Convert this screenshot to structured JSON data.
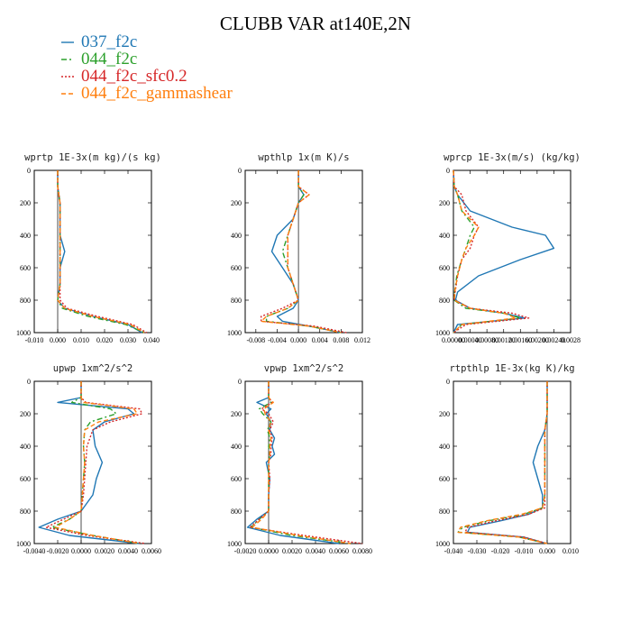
{
  "title": "CLUBB VAR at140E,2N",
  "legend": [
    {
      "label": "037_f2c",
      "color": "#1f77b4",
      "dash": "none"
    },
    {
      "label": "044_f2c",
      "color": "#2ca02c",
      "dash": "6,3,2,3"
    },
    {
      "label": "044_f2c_sfc0.2",
      "color": "#d62728",
      "dash": "2,2"
    },
    {
      "label": "044_f2c_gammashear",
      "color": "#ff7f0e",
      "dash": "5,3"
    }
  ],
  "chart_data": [
    {
      "type": "line",
      "title": "wprtp  1E-3x(m kg)/(s kg)",
      "xlim": [
        -0.01,
        0.04
      ],
      "xticks": [
        "-0.010",
        "0.000",
        "0.010",
        "0.020",
        "0.030",
        "0.040"
      ],
      "ylim": [
        1000,
        0
      ],
      "yticks": [
        "0",
        "200",
        "400",
        "600",
        "800",
        "1000"
      ],
      "y": [
        0,
        100,
        200,
        300,
        400,
        450,
        500,
        550,
        600,
        700,
        800,
        850,
        900,
        950,
        1000
      ],
      "series": [
        {
          "name": "037_f2c",
          "values": [
            0.0,
            0.0,
            0.001,
            0.001,
            0.001,
            0.002,
            0.003,
            0.002,
            0.001,
            0.001,
            0.0,
            0.003,
            0.015,
            0.03,
            0.036
          ]
        },
        {
          "name": "044_f2c",
          "values": [
            0.0,
            0.0,
            0.001,
            0.001,
            0.001,
            0.001,
            0.001,
            0.001,
            0.001,
            0.001,
            0.0,
            0.002,
            0.013,
            0.029,
            0.037
          ]
        },
        {
          "name": "044_f2c_sfc0.2",
          "values": [
            0.0,
            0.0,
            0.001,
            0.001,
            0.001,
            0.001,
            0.001,
            0.001,
            0.001,
            0.001,
            0.001,
            0.004,
            0.017,
            0.032,
            0.038
          ]
        },
        {
          "name": "044_f2c_gammashear",
          "values": [
            0.0,
            0.0,
            0.001,
            0.001,
            0.001,
            0.001,
            0.001,
            0.001,
            0.001,
            0.001,
            0.0,
            0.003,
            0.015,
            0.031,
            0.037
          ]
        }
      ]
    },
    {
      "type": "line",
      "title": "wpthlp  1x(m K)/s",
      "xlim": [
        -0.01,
        0.012
      ],
      "xticks": [
        "-0.008",
        "-0.004",
        "0.000",
        "0.004",
        "0.008",
        "0.012"
      ],
      "ylim": [
        1000,
        0
      ],
      "yticks": [
        "0",
        "200",
        "400",
        "600",
        "800",
        "1000"
      ],
      "y": [
        0,
        100,
        150,
        200,
        300,
        400,
        500,
        600,
        700,
        800,
        850,
        900,
        930,
        960,
        1000
      ],
      "series": [
        {
          "name": "037_f2c",
          "values": [
            0.0,
            0.0,
            0.001,
            0.0,
            -0.001,
            -0.004,
            -0.005,
            -0.003,
            -0.001,
            0.0,
            -0.001,
            -0.004,
            -0.003,
            0.002,
            0.008
          ]
        },
        {
          "name": "044_f2c",
          "values": [
            0.0,
            0.0,
            0.001,
            0.0,
            -0.001,
            -0.002,
            -0.003,
            -0.002,
            -0.001,
            0.0,
            -0.002,
            -0.006,
            -0.006,
            0.002,
            0.008
          ]
        },
        {
          "name": "044_f2c_sfc0.2",
          "values": [
            0.0,
            0.0,
            0.002,
            0.0,
            -0.001,
            -0.002,
            -0.002,
            -0.002,
            -0.001,
            0.0,
            -0.003,
            -0.007,
            -0.007,
            0.003,
            0.009
          ]
        },
        {
          "name": "044_f2c_gammashear",
          "values": [
            0.0,
            0.0,
            0.002,
            0.0,
            -0.001,
            -0.002,
            -0.002,
            -0.002,
            -0.001,
            0.0,
            -0.002,
            -0.006,
            -0.007,
            0.002,
            0.008
          ]
        }
      ]
    },
    {
      "type": "line",
      "title": "wprcp  1E-3x(m/s) (kg/kg)",
      "xlim": [
        0.0,
        0.0028
      ],
      "xticks": [
        "0.00000",
        "0.00040",
        "0.00080",
        "0.00120",
        "0.00160",
        "0.00200",
        "0.00240",
        "0.0028"
      ],
      "ylim": [
        1000,
        0
      ],
      "yticks": [
        "0",
        "200",
        "400",
        "600",
        "800",
        "1000"
      ],
      "y": [
        0,
        100,
        150,
        250,
        350,
        400,
        480,
        550,
        650,
        750,
        800,
        850,
        880,
        910,
        950,
        1000
      ],
      "series": [
        {
          "name": "037_f2c",
          "values": [
            0.0,
            2e-05,
            0.0001,
            0.0004,
            0.0014,
            0.0022,
            0.0024,
            0.0016,
            0.0006,
            0.0001,
            5e-05,
            0.0004,
            0.0012,
            0.0017,
            0.0001,
            0.0
          ]
        },
        {
          "name": "044_f2c",
          "values": [
            0.0,
            2e-05,
            0.0001,
            0.0002,
            0.0005,
            0.0004,
            0.0003,
            0.0002,
            8e-05,
            3e-05,
            2e-05,
            0.0003,
            0.0012,
            0.0016,
            0.0002,
            0.0
          ]
        },
        {
          "name": "044_f2c_sfc0.2",
          "values": [
            0.0,
            2e-05,
            0.0002,
            0.0003,
            0.0006,
            0.0005,
            0.0004,
            0.0002,
            0.0001,
            4e-05,
            2e-05,
            0.0004,
            0.0014,
            0.0018,
            0.0003,
            0.0
          ]
        },
        {
          "name": "044_f2c_gammashear",
          "values": [
            0.0,
            2e-05,
            0.0001,
            0.0002,
            0.0006,
            0.0005,
            0.0003,
            0.0002,
            0.0001,
            3e-05,
            2e-05,
            0.0004,
            0.0012,
            0.0015,
            0.0002,
            0.0
          ]
        }
      ]
    },
    {
      "type": "line",
      "title": "upwp  1xm^2/s^2",
      "xlim": [
        -0.004,
        0.006
      ],
      "xticks": [
        "-0.0040",
        "-0.0020",
        "0.0000",
        "0.0020",
        "0.0040",
        "0.0060"
      ],
      "ylim": [
        1000,
        0
      ],
      "yticks": [
        "0",
        "200",
        "400",
        "600",
        "800",
        "1000"
      ],
      "y": [
        0,
        100,
        130,
        170,
        200,
        250,
        300,
        400,
        500,
        600,
        700,
        800,
        850,
        900,
        950,
        1000
      ],
      "series": [
        {
          "name": "037_f2c",
          "values": [
            0.0,
            0.0,
            -0.002,
            0.004,
            0.0045,
            0.002,
            0.001,
            0.0012,
            0.0018,
            0.0013,
            0.001,
            0.0,
            -0.002,
            -0.0036,
            -0.001,
            0.005
          ]
        },
        {
          "name": "044_f2c",
          "values": [
            0.0,
            0.0,
            -0.0008,
            0.0025,
            0.003,
            0.0008,
            0.0003,
            0.0002,
            0.0003,
            0.0002,
            0.0001,
            0.0,
            -0.001,
            -0.0025,
            0.001,
            0.005
          ]
        },
        {
          "name": "044_f2c_sfc0.2",
          "values": [
            0.0,
            0.0,
            0.0004,
            0.005,
            0.0052,
            0.0025,
            0.001,
            0.0005,
            0.0004,
            0.0003,
            0.0002,
            0.0,
            -0.0015,
            -0.003,
            0.0005,
            0.0055
          ]
        },
        {
          "name": "044_f2c_gammashear",
          "values": [
            0.0,
            0.0,
            0.0002,
            0.0045,
            0.0048,
            0.0015,
            0.0003,
            0.0002,
            0.0003,
            0.0002,
            0.0001,
            0.0,
            -0.001,
            -0.0022,
            0.001,
            0.005
          ]
        }
      ]
    },
    {
      "type": "line",
      "title": "vpwp  1xm^2/s^2",
      "xlim": [
        -0.002,
        0.008
      ],
      "xticks": [
        "-0.0020",
        "0.0000",
        "0.0020",
        "0.0040",
        "0.0060",
        "0.0080"
      ],
      "ylim": [
        1000,
        0
      ],
      "yticks": [
        "0",
        "200",
        "400",
        "600",
        "800",
        "1000"
      ],
      "y": [
        0,
        100,
        130,
        170,
        200,
        250,
        300,
        350,
        400,
        450,
        500,
        600,
        700,
        800,
        850,
        900,
        950,
        1000
      ],
      "series": [
        {
          "name": "037_f2c",
          "values": [
            0.0,
            0.0,
            -0.001,
            0.0002,
            -0.0002,
            0.0002,
            0.0001,
            0.0005,
            0.0003,
            0.0005,
            -0.0002,
            0.0001,
            0.0,
            0.0,
            -0.001,
            -0.0018,
            0.001,
            0.006
          ]
        },
        {
          "name": "044_f2c",
          "values": [
            0.0,
            0.0,
            0.0002,
            -0.0008,
            -0.0005,
            0.0002,
            -0.0001,
            0.0001,
            0.0,
            0.0001,
            0.0,
            0.0,
            0.0,
            0.0,
            -0.0008,
            -0.0015,
            0.002,
            0.007
          ]
        },
        {
          "name": "044_f2c_sfc0.2",
          "values": [
            0.0,
            0.0,
            0.0003,
            -0.0006,
            0.0,
            0.0004,
            0.0001,
            0.0003,
            0.0002,
            0.0002,
            0.0,
            0.0001,
            0.0,
            0.0,
            -0.0008,
            -0.0016,
            0.003,
            0.008
          ]
        },
        {
          "name": "044_f2c_gammashear",
          "values": [
            0.0,
            0.0,
            0.0004,
            -0.0004,
            -0.0003,
            0.0002,
            0.0,
            0.0002,
            0.0001,
            0.0001,
            0.0,
            0.0,
            0.0,
            0.0,
            -0.0006,
            -0.0014,
            0.0025,
            0.007
          ]
        }
      ]
    },
    {
      "type": "line",
      "title": "rtpthlp  1E-3x(kg K)/kg",
      "xlim": [
        -0.04,
        0.01
      ],
      "xticks": [
        "-0.040",
        "-0.030",
        "-0.020",
        "-0.010",
        "0.000",
        "0.010"
      ],
      "ylim": [
        1000,
        0
      ],
      "yticks": [
        "0",
        "200",
        "400",
        "600",
        "800",
        "1000"
      ],
      "y": [
        0,
        100,
        200,
        300,
        400,
        500,
        600,
        700,
        780,
        820,
        860,
        900,
        930,
        960,
        1000
      ],
      "series": [
        {
          "name": "037_f2c",
          "values": [
            0.0,
            0.0,
            0.0,
            -0.001,
            -0.004,
            -0.006,
            -0.004,
            -0.002,
            -0.002,
            -0.008,
            -0.02,
            -0.033,
            -0.034,
            -0.01,
            0.0
          ]
        },
        {
          "name": "044_f2c",
          "values": [
            0.0,
            0.0,
            0.0,
            -0.001,
            -0.001,
            -0.001,
            -0.001,
            -0.001,
            -0.002,
            -0.01,
            -0.025,
            -0.036,
            -0.038,
            -0.012,
            0.0
          ]
        },
        {
          "name": "044_f2c_sfc0.2",
          "values": [
            0.0,
            0.0,
            0.0,
            -0.001,
            -0.001,
            -0.001,
            -0.001,
            -0.001,
            -0.001,
            -0.008,
            -0.022,
            -0.034,
            -0.035,
            -0.01,
            0.0
          ]
        },
        {
          "name": "044_f2c_gammashear",
          "values": [
            0.0,
            0.0,
            0.0,
            -0.001,
            -0.001,
            -0.001,
            -0.001,
            -0.001,
            -0.002,
            -0.011,
            -0.026,
            -0.037,
            -0.038,
            -0.012,
            0.0
          ]
        }
      ]
    }
  ]
}
